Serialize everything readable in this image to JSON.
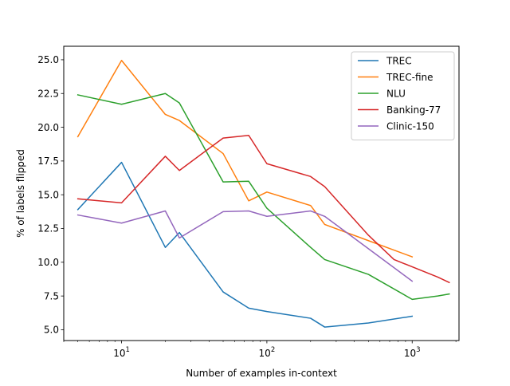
{
  "chart_data": {
    "type": "line",
    "title": "",
    "xlabel": "Number of examples in-context",
    "ylabel": "% of labels flipped",
    "xscale": "log",
    "xlim": [
      4,
      2100
    ],
    "ylim": [
      4.2,
      26.0
    ],
    "grid": false,
    "legend_position": "top-right",
    "x_ticks": [
      {
        "value": 10,
        "base": "10",
        "exp": "1"
      },
      {
        "value": 100,
        "base": "10",
        "exp": "2"
      },
      {
        "value": 1000,
        "base": "10",
        "exp": "3"
      }
    ],
    "y_ticks": [
      {
        "value": 5.0,
        "label": "5.0"
      },
      {
        "value": 7.5,
        "label": "7.5"
      },
      {
        "value": 10.0,
        "label": "10.0"
      },
      {
        "value": 12.5,
        "label": "12.5"
      },
      {
        "value": 15.0,
        "label": "15.0"
      },
      {
        "value": 17.5,
        "label": "17.5"
      },
      {
        "value": 20.0,
        "label": "20.0"
      },
      {
        "value": 22.5,
        "label": "22.5"
      },
      {
        "value": 25.0,
        "label": "25.0"
      }
    ],
    "series": [
      {
        "name": "TREC",
        "color": "#1f77b4",
        "x": [
          5,
          10,
          20,
          25,
          50,
          75,
          100,
          200,
          250,
          500,
          1000
        ],
        "y": [
          13.9,
          17.4,
          11.1,
          12.2,
          7.8,
          6.6,
          6.35,
          5.85,
          5.2,
          5.5,
          6.0
        ]
      },
      {
        "name": "TREC-fine",
        "color": "#ff7f0e",
        "x": [
          5,
          10,
          20,
          25,
          50,
          75,
          100,
          200,
          250,
          500,
          1000
        ],
        "y": [
          19.3,
          24.95,
          20.95,
          20.5,
          18.05,
          14.55,
          15.2,
          14.2,
          12.8,
          11.6,
          10.4
        ]
      },
      {
        "name": "NLU",
        "color": "#2ca02c",
        "x": [
          5,
          10,
          20,
          25,
          50,
          75,
          100,
          200,
          250,
          500,
          1000,
          1500,
          1800
        ],
        "y": [
          22.4,
          21.7,
          22.5,
          21.8,
          15.95,
          16.0,
          14.0,
          11.1,
          10.2,
          9.1,
          7.25,
          7.5,
          7.65
        ]
      },
      {
        "name": "Banking-77",
        "color": "#d62728",
        "x": [
          5,
          10,
          20,
          25,
          50,
          75,
          100,
          200,
          250,
          500,
          750,
          1500,
          1800
        ],
        "y": [
          14.7,
          14.4,
          17.85,
          16.8,
          19.2,
          19.4,
          17.3,
          16.35,
          15.6,
          12.0,
          10.2,
          8.9,
          8.5
        ]
      },
      {
        "name": "Clinic-150",
        "color": "#9467bd",
        "x": [
          5,
          10,
          20,
          25,
          50,
          75,
          100,
          200,
          250,
          500,
          1000
        ],
        "y": [
          13.5,
          12.9,
          13.8,
          11.8,
          13.75,
          13.8,
          13.4,
          13.8,
          13.4,
          11.0,
          8.6
        ]
      }
    ]
  }
}
